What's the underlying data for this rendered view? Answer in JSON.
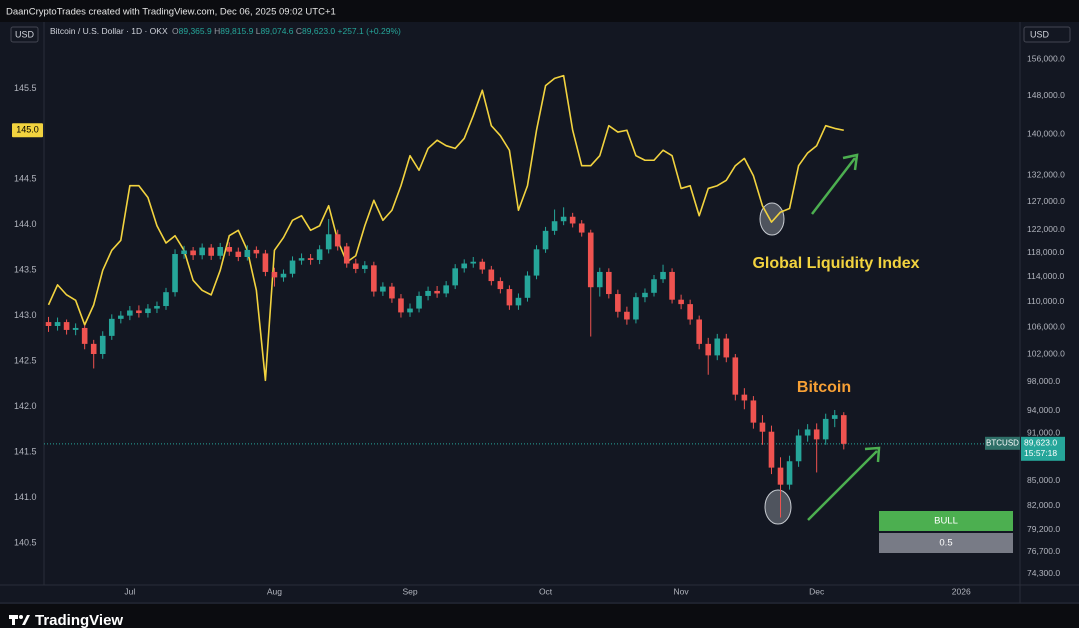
{
  "header": {
    "credit": "DaanCryptoTrades created with TradingView.com, Dec 06, 2025 09:02 UTC+1",
    "currency_left": "USD",
    "currency_right": "USD",
    "footer": "TradingView"
  },
  "chart_data": {
    "type": "candlestick",
    "legend": {
      "symbol": "Bitcoin / U.S. Dollar · 1D · OKX",
      "ohlc": [
        {
          "key": "O",
          "value": "89,365.9"
        },
        {
          "key": "H",
          "value": "89,815.9"
        },
        {
          "key": "L",
          "value": "89,074.6"
        },
        {
          "key": "C",
          "value": "89,623.0"
        }
      ],
      "change": "+257.1 (+0.29%)"
    },
    "categories": [
      null,
      null,
      null,
      null,
      null,
      null,
      null,
      null,
      null,
      "Jul",
      null,
      null,
      null,
      null,
      null,
      null,
      null,
      null,
      null,
      null,
      null,
      null,
      null,
      null,
      null,
      "Aug",
      null,
      null,
      null,
      null,
      null,
      null,
      null,
      null,
      null,
      null,
      null,
      null,
      null,
      null,
      "Sep",
      null,
      null,
      null,
      null,
      null,
      null,
      null,
      null,
      null,
      null,
      null,
      null,
      null,
      null,
      "Oct",
      null,
      null,
      null,
      null,
      null,
      null,
      null,
      null,
      null,
      null,
      null,
      null,
      null,
      null,
      "Nov",
      null,
      null,
      null,
      null,
      null,
      null,
      null,
      null,
      null,
      null,
      null,
      null,
      null,
      null,
      "Dec",
      null,
      null,
      null,
      null,
      null,
      null,
      null,
      null,
      null,
      null,
      null,
      null,
      null,
      null,
      null,
      "2026",
      null,
      null,
      null,
      null,
      null,
      null
    ],
    "ylim": [
      140.04,
      146.23
    ],
    "yticks": [
      140.5,
      {
        "value": 141,
        "label": "141.0"
      },
      141.5,
      {
        "value": 142,
        "label": "142.0"
      },
      142.5,
      {
        "value": 143,
        "label": "143.0"
      },
      143.5,
      {
        "value": 144,
        "label": "144.0"
      },
      144.5,
      {
        "value": 145,
        "label": "145.0"
      },
      145.5
    ],
    "y2lim": [
      73130,
      164550
    ],
    "y2scale": "log",
    "y2ticks": [
      {
        "value": 156000,
        "label": "156,000.0"
      },
      {
        "value": 148000,
        "label": "148,000.0"
      },
      {
        "value": 140000,
        "label": "140,000.0"
      },
      {
        "value": 132000,
        "label": "132,000.0"
      },
      {
        "value": 127000,
        "label": "127,000.0"
      },
      {
        "value": 122000,
        "label": "122,000.0"
      },
      {
        "value": 118000,
        "label": "118,000.0"
      },
      {
        "value": 114000,
        "label": "114,000.0"
      },
      {
        "value": 110000,
        "label": "110,000.0"
      },
      {
        "value": 106000,
        "label": "106,000.0"
      },
      {
        "value": 102000,
        "label": "102,000.0"
      },
      {
        "value": 98000,
        "label": "98,000.0"
      },
      {
        "value": 94000,
        "label": "94,000.0"
      },
      {
        "value": 91000,
        "label": "91,000.0"
      },
      {
        "value": 85000,
        "label": "85,000.0"
      },
      {
        "value": 82000,
        "label": "82,000.0"
      },
      {
        "value": 79200,
        "label": "79,200.0"
      },
      {
        "value": 76700,
        "label": "76,700.0"
      },
      {
        "value": 74300,
        "label": "74,300.0"
      }
    ],
    "grid": false,
    "series": [
      {
        "name": "Global Liquidity Index",
        "type": "line",
        "axis": "y",
        "color": "#f2d33f",
        "last_label": "145.0",
        "values": [
          143.12,
          143.34,
          143.23,
          143.17,
          142.9,
          143.12,
          143.5,
          143.72,
          143.83,
          144.43,
          144.43,
          144.3,
          143.99,
          143.8,
          143.88,
          143.72,
          143.39,
          143.28,
          143.23,
          143.5,
          143.88,
          143.94,
          143.72,
          143.28,
          142.29,
          143.72,
          143.86,
          144.05,
          144.1,
          143.94,
          143.99,
          144.21,
          143.83,
          143.59,
          143.66,
          143.99,
          144.27,
          144.05,
          144.16,
          144.43,
          144.76,
          144.6,
          144.84,
          144.93,
          144.87,
          144.84,
          144.95,
          145.2,
          145.48,
          145.09,
          144.98,
          144.82,
          144.16,
          144.43,
          145.04,
          145.53,
          145.61,
          145.64,
          145.04,
          144.65,
          144.65,
          144.76,
          145.09,
          145.02,
          145.04,
          144.76,
          144.71,
          144.71,
          144.82,
          144.76,
          144.4,
          144.43,
          144.1,
          144.4,
          144.43,
          144.49,
          144.65,
          144.73,
          144.54,
          144.21,
          144.03,
          144.14,
          144.18,
          144.65,
          144.79,
          144.87,
          145.09,
          145.06,
          145.04,
          null,
          null,
          null,
          null,
          null,
          null,
          null,
          null,
          null,
          null,
          null,
          null,
          null,
          null,
          null,
          null,
          null,
          null,
          null
        ]
      },
      {
        "name": "Bitcoin",
        "type": "candlestick",
        "axis": "y2",
        "label_color": "#f7a035",
        "up_color": "#26a69a",
        "down_color": "#ef5350",
        "open": [
          106800,
          106200,
          106800,
          105600,
          105900,
          103500,
          102000,
          104700,
          107300,
          107800,
          108600,
          108200,
          108900,
          109300,
          111500,
          117800,
          118400,
          117600,
          118900,
          117500,
          119000,
          118200,
          117300,
          118500,
          117900,
          114800,
          113900,
          114500,
          116700,
          117100,
          116800,
          118600,
          121200,
          119100,
          116200,
          115300,
          115900,
          111600,
          112400,
          110500,
          108300,
          108900,
          110900,
          111700,
          111300,
          112600,
          115400,
          116200,
          116500,
          115200,
          113300,
          112000,
          109400,
          110600,
          114200,
          118600,
          121800,
          123500,
          124300,
          123100,
          121500,
          112300,
          114800,
          111200,
          108400,
          107200,
          110700,
          111400,
          113600,
          114800,
          110300,
          109600,
          107200,
          103500,
          101800,
          104300,
          101500,
          96200,
          95400,
          92400,
          91200,
          86600,
          84500,
          87400,
          90700,
          91500,
          90200,
          92900,
          93400,
          null,
          null,
          null,
          null,
          null,
          null,
          null,
          null,
          null,
          null,
          null,
          null,
          null,
          null,
          null,
          null,
          null,
          null,
          null
        ],
        "high": [
          107600,
          107500,
          107200,
          106600,
          106300,
          104100,
          105400,
          108000,
          108500,
          109300,
          109400,
          109600,
          110000,
          112200,
          118600,
          119200,
          119000,
          119600,
          119500,
          119700,
          119800,
          118900,
          119300,
          119100,
          118500,
          115500,
          115200,
          117400,
          117900,
          117800,
          119300,
          123900,
          122000,
          119700,
          117000,
          116600,
          116500,
          113100,
          113000,
          111200,
          109700,
          111600,
          112400,
          112500,
          113300,
          116100,
          116900,
          117300,
          117000,
          115800,
          113900,
          112600,
          111300,
          114900,
          119300,
          122500,
          125600,
          126000,
          125000,
          123700,
          122000,
          115500,
          115400,
          111900,
          109200,
          111400,
          112100,
          114300,
          116000,
          115400,
          111100,
          110300,
          107800,
          104400,
          105000,
          105000,
          102000,
          97100,
          96000,
          93400,
          92000,
          87900,
          88100,
          91500,
          92200,
          92300,
          93600,
          94100,
          93800,
          null,
          null,
          null,
          null,
          null,
          null,
          null,
          null,
          null,
          null,
          null,
          null,
          null,
          null,
          null,
          null,
          null,
          null,
          null
        ],
        "low": [
          105300,
          105500,
          104900,
          104800,
          102700,
          99900,
          101300,
          104100,
          106600,
          107100,
          107500,
          107500,
          108200,
          108700,
          110800,
          117000,
          116800,
          116900,
          116800,
          116900,
          117500,
          116600,
          116700,
          117100,
          114100,
          112400,
          113200,
          113900,
          116000,
          116000,
          116100,
          117900,
          118400,
          115500,
          114600,
          114600,
          110800,
          110900,
          109800,
          107500,
          107600,
          108300,
          110200,
          110600,
          110700,
          112000,
          114700,
          115500,
          114500,
          112600,
          111300,
          108700,
          108700,
          110000,
          113600,
          118000,
          121100,
          122800,
          122400,
          120800,
          104600,
          110800,
          110500,
          107500,
          106400,
          106600,
          109900,
          110800,
          113000,
          109700,
          108800,
          106400,
          102700,
          99000,
          101100,
          100800,
          95400,
          94200,
          91600,
          89500,
          85800,
          80600,
          83900,
          86700,
          89900,
          86000,
          89500,
          91800,
          88900,
          null,
          null,
          null,
          null,
          null,
          null,
          null,
          null,
          null,
          null,
          null,
          null,
          null,
          null,
          null,
          null,
          null,
          null,
          null
        ],
        "close": [
          106200,
          106800,
          105600,
          105900,
          103500,
          102000,
          104700,
          107300,
          107800,
          108600,
          108200,
          108900,
          109300,
          111500,
          117800,
          118400,
          117600,
          118900,
          117500,
          119000,
          118200,
          117300,
          118500,
          117900,
          114800,
          113900,
          114500,
          116700,
          117100,
          116800,
          118600,
          121200,
          119100,
          116200,
          115300,
          115900,
          111600,
          112400,
          110500,
          108300,
          108900,
          110900,
          111700,
          111300,
          112600,
          115400,
          116200,
          116500,
          115200,
          113300,
          112000,
          109400,
          110600,
          114200,
          118600,
          121800,
          123500,
          124300,
          123100,
          121500,
          112300,
          114800,
          111200,
          108400,
          107200,
          110700,
          111400,
          113600,
          114800,
          110300,
          109600,
          107200,
          103500,
          101800,
          104300,
          101500,
          96200,
          95400,
          92400,
          91200,
          86600,
          84500,
          87400,
          90700,
          91500,
          90200,
          92900,
          93400,
          89623,
          null,
          null,
          null,
          null,
          null,
          null,
          null,
          null,
          null,
          null,
          null,
          null,
          null,
          null,
          null,
          null,
          null,
          null,
          null
        ]
      }
    ],
    "price_tag": {
      "symbol": "BTCUSD",
      "value": 89623,
      "label": "89,623.0",
      "countdown": "15:57:18"
    },
    "signal": {
      "state": "BULL",
      "score": 0.5
    }
  }
}
